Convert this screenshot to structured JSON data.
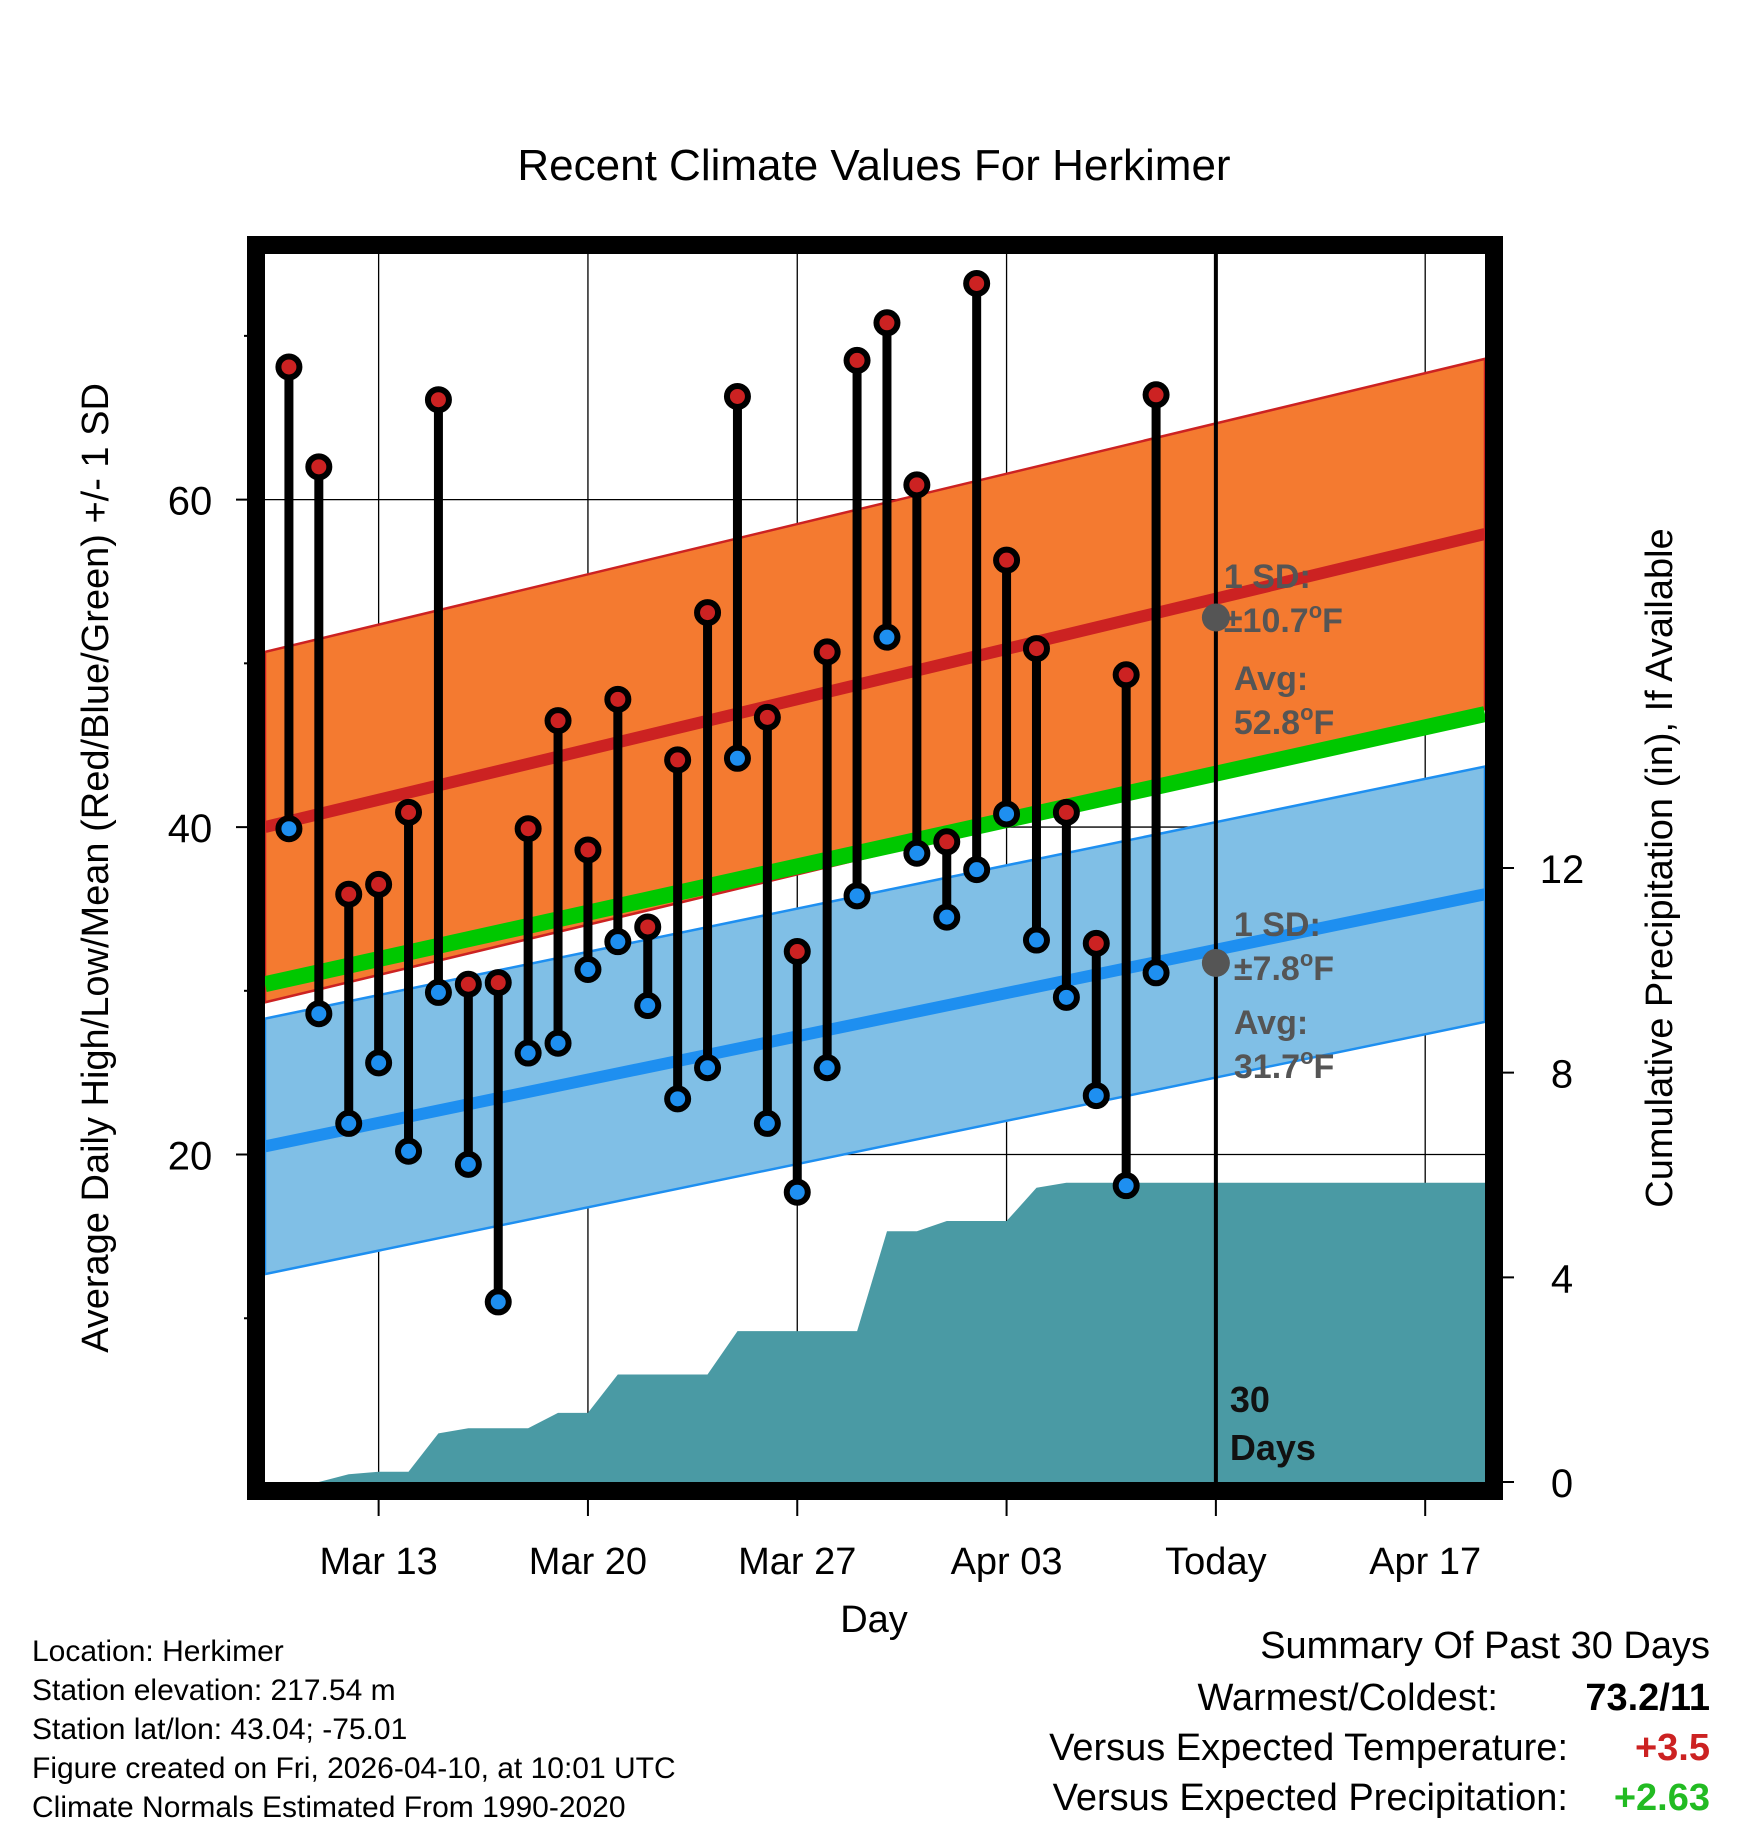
{
  "chart_data": {
    "type": "line",
    "title": "Recent Climate Values For Herkimer",
    "xlabel": "Day",
    "ylabel": "Average Daily High/Low/Mean (Red/Blue/Green) +/- 1 SD",
    "y2label": "Cumulative Precipitation (in), If Available",
    "x_ticks": [
      {
        "label": "Mar 13",
        "day": 3
      },
      {
        "label": "Mar 20",
        "day": 10
      },
      {
        "label": "Mar 27",
        "day": 17
      },
      {
        "label": "Apr 03",
        "day": 24
      },
      {
        "label": "Today",
        "day": 31
      },
      {
        "label": "Apr 17",
        "day": 38
      }
    ],
    "xlim": [
      -0.8,
      40
    ],
    "ylim": [
      0,
      75
    ],
    "y_ticks": [
      20,
      40,
      60
    ],
    "y_minor_ticks": [
      10,
      30,
      50,
      70
    ],
    "y2lim": [
      0,
      24
    ],
    "y2_ticks": [
      0,
      4,
      8,
      12
    ],
    "today_day": 31,
    "normals": {
      "high_avg": [
        40.0,
        57.9
      ],
      "high_sd": 10.7,
      "low_avg": [
        20.5,
        35.9
      ],
      "low_sd": 7.8,
      "mean_avg": [
        30.4,
        46.9
      ]
    },
    "observed": {
      "days": [
        0,
        1,
        2,
        3,
        4,
        5,
        6,
        7,
        8,
        9,
        10,
        11,
        12,
        13,
        14,
        15,
        16,
        17,
        18,
        19,
        20,
        21,
        22,
        23,
        24,
        25,
        26,
        27,
        28,
        29,
        30
      ],
      "highs": [
        68.1,
        62.0,
        35.9,
        36.5,
        40.9,
        66.1,
        30.4,
        30.5,
        39.9,
        46.5,
        38.6,
        47.8,
        33.9,
        44.1,
        53.1,
        66.3,
        46.7,
        32.4,
        50.7,
        68.5,
        70.8,
        60.9,
        39.1,
        73.2,
        56.3,
        50.9,
        40.9,
        32.9,
        49.3,
        66.4,
        null
      ],
      "lows": [
        39.9,
        28.6,
        21.9,
        25.6,
        20.2,
        29.9,
        19.4,
        11.0,
        26.2,
        26.8,
        31.3,
        33.0,
        29.1,
        23.4,
        25.3,
        44.2,
        21.9,
        17.7,
        25.3,
        35.8,
        51.6,
        38.4,
        34.5,
        37.4,
        40.8,
        33.1,
        29.6,
        23.6,
        18.1,
        31.1,
        null
      ]
    },
    "precip": {
      "days": [
        0,
        1,
        2,
        3,
        4,
        5,
        6,
        7,
        8,
        9,
        10,
        11,
        12,
        13,
        14,
        15,
        16,
        17,
        18,
        19,
        20,
        21,
        22,
        23,
        24,
        25,
        26,
        27,
        28,
        29,
        30,
        31,
        40
      ],
      "cumulative": [
        0,
        0,
        0.15,
        0.2,
        0.2,
        0.95,
        1.05,
        1.05,
        1.05,
        1.35,
        1.35,
        2.1,
        2.1,
        2.1,
        2.1,
        2.95,
        2.95,
        2.95,
        2.95,
        2.95,
        4.9,
        4.9,
        5.1,
        5.1,
        5.1,
        5.75,
        5.85,
        5.85,
        5.85,
        5.85,
        5.85,
        5.85,
        5.85
      ]
    },
    "annotations": {
      "high_sd": "1 SD:",
      "high_sd_value": "±10.7",
      "high_avg_label": "Avg:",
      "high_avg_value": "52.8",
      "low_sd": "1 SD:",
      "low_sd_value": "±7.8",
      "low_avg_label": "Avg:",
      "low_avg_value": "31.7",
      "high_today": 52.8,
      "low_today": 31.7,
      "degree": "o",
      "unit": "F",
      "days_num": "30",
      "days_word": "Days"
    },
    "colors": {
      "high_band": "#f47a30",
      "high_line": "#cc2222",
      "low_band": "#80bfe6",
      "low_line": "#1e8ff0",
      "mean_line": "#00c800",
      "precip": "#4a9aa4",
      "high_dot": "#cc2222",
      "low_dot": "#1e8ff0",
      "annotation": "#555555"
    }
  },
  "info": {
    "location": "Location: Herkimer",
    "elevation": "Station elevation: 217.54 m",
    "latlon": "Station lat/lon: 43.04; -75.01",
    "created": "Figure created on Fri, 2026-04-10, at 10:01 UTC",
    "normals": "Climate Normals Estimated From 1990-2020"
  },
  "summary": {
    "title": "Summary Of Past 30 Days",
    "warmest_label": "Warmest/Coldest:",
    "warmest_value": "73.2/11",
    "temp_label": "Versus Expected Temperature:",
    "temp_value": "+3.5",
    "temp_color": "#cc2222",
    "precip_label": "Versus Expected Precipitation:",
    "precip_value": "+2.63",
    "precip_color": "#22bb22"
  }
}
